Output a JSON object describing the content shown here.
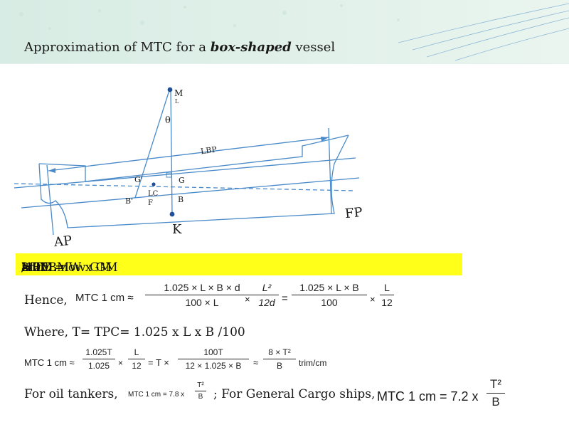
{
  "title": {
    "prefix": "Approximation of MTC for a ",
    "emph": "box-shaped",
    "suffix": " vessel"
  },
  "diagram": {
    "ml_m": "M",
    "ml_l": "L",
    "theta": "θ",
    "lbp": "LBP",
    "g": "G",
    "g_prime": "G'",
    "b_prime": "B'",
    "lcf_1": "LC",
    "lcf_2": "F",
    "b": "B",
    "k": "K",
    "ap": "AP",
    "fp": "FP",
    "small_box": "□"
  },
  "highlight": {
    "a": "MTC = W x GM",
    "a_sub": "L",
    "b": "/100L   now GM",
    "b_sub": "L",
    "c": " ≈BM",
    "c_sub": "L",
    "d": " and BM",
    "d_sub": "L",
    "e": " = L",
    "e_sup": "2",
    "f": "/12d"
  },
  "hence": {
    "label": "Hence,",
    "lhs": "MTC 1 cm ≈",
    "f1_num": "1.025 × L × B × d",
    "f1_den": "100 × L",
    "times": "×",
    "f2_num": "L²",
    "f2_den": "12d",
    "eq": "=",
    "f3_num": "1.025 × L × B",
    "f3_den": "100",
    "f4_num": "L",
    "f4_den": "12"
  },
  "where": "Where, T= TPC= 1.025 x L x B /100",
  "eq2": {
    "lhs": "MTC 1 cm ≈",
    "f1_num": "1.025T",
    "f1_den": "1.025",
    "times": "×",
    "f2_num": "L",
    "f2_den": "12",
    "eq": "= T ×",
    "f3_num": "100T",
    "f3_den": "12 × 1.025 × B",
    "approx": "≈",
    "f4_num": "8 × T²",
    "f4_den": "B",
    "unit": "trim/cm"
  },
  "oil": {
    "label": "For oil tankers,",
    "formula": "MTC 1 cm = 7.8 x",
    "num": "T²",
    "den": "B"
  },
  "cargo": {
    "label": "; For General Cargo ships,",
    "formula": "MTC 1 cm = 7.2 x",
    "num": "T²",
    "den": "B"
  },
  "colors": {
    "line": "#4a8ac9",
    "point": "#1f4f99",
    "highlight": "#ffff1a"
  }
}
